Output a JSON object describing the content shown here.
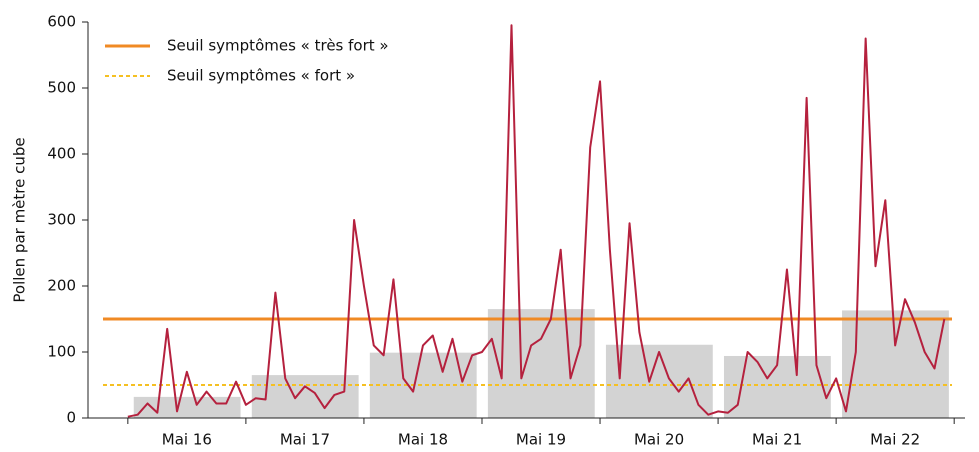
{
  "chart_data": {
    "type": "line",
    "ylabel": "Pollen par mètre cube",
    "ylim": [
      0,
      600
    ],
    "yticks": [
      0,
      100,
      200,
      300,
      400,
      500,
      600
    ],
    "xlim": [
      -8.1,
      170.2
    ],
    "xticks": [
      {
        "value": 12,
        "label": "Mai 16"
      },
      {
        "value": 36,
        "label": "Mai 17"
      },
      {
        "value": 60,
        "label": "Mai 18"
      },
      {
        "value": 84,
        "label": "Mai 19"
      },
      {
        "value": 108,
        "label": "Mai 20"
      },
      {
        "value": 132,
        "label": "Mai 21"
      },
      {
        "value": 156,
        "label": "Mai 22"
      }
    ],
    "xminorticks": [
      0,
      24,
      48,
      72,
      96,
      120,
      144,
      168
    ],
    "bars": {
      "color": "#d3d3d3",
      "values": [
        32,
        65,
        99,
        165,
        111,
        94,
        163
      ]
    },
    "thresholds": [
      {
        "name": "Seuil symptômes « très fort »",
        "value": 150,
        "color": "#f08a24",
        "style": "solid"
      },
      {
        "name": "Seuil symptômes « fort »",
        "value": 50,
        "color": "#f5c022",
        "style": "dashed"
      }
    ],
    "legend": "upper left",
    "x": [
      0,
      2,
      4,
      6,
      8,
      10,
      12,
      14,
      16,
      18,
      20,
      22,
      24,
      26,
      28,
      30,
      32,
      34,
      36,
      38,
      40,
      42,
      44,
      46,
      48,
      50,
      52,
      54,
      56,
      58,
      60,
      62,
      64,
      66,
      68,
      70,
      72,
      74,
      76,
      78,
      80,
      82,
      84,
      86,
      88,
      90,
      92,
      94,
      96,
      98,
      100,
      102,
      104,
      106,
      108,
      110,
      112,
      114,
      116,
      118,
      120,
      122,
      124,
      126,
      128,
      130,
      132,
      134,
      136,
      138,
      140,
      142,
      144,
      146,
      148,
      150,
      152,
      154,
      156,
      158,
      160,
      162,
      164,
      166
    ],
    "series": [
      {
        "color": "#b5213e",
        "values": [
          2,
          5,
          22,
          8,
          135,
          10,
          70,
          20,
          40,
          22,
          22,
          55,
          20,
          30,
          28,
          190,
          60,
          30,
          48,
          38,
          15,
          35,
          40,
          300,
          200,
          110,
          95,
          210,
          60,
          40,
          110,
          125,
          70,
          120,
          55,
          95,
          100,
          120,
          60,
          595,
          60,
          110,
          120,
          150,
          255,
          60,
          110,
          410,
          510,
          255,
          60,
          295,
          130,
          55,
          100,
          60,
          40,
          60,
          20,
          5,
          10,
          8,
          20,
          100,
          85,
          60,
          80,
          225,
          65,
          485,
          80,
          30,
          60,
          10,
          100,
          575,
          230,
          330,
          110,
          180,
          145,
          100,
          75,
          150
        ]
      }
    ]
  }
}
